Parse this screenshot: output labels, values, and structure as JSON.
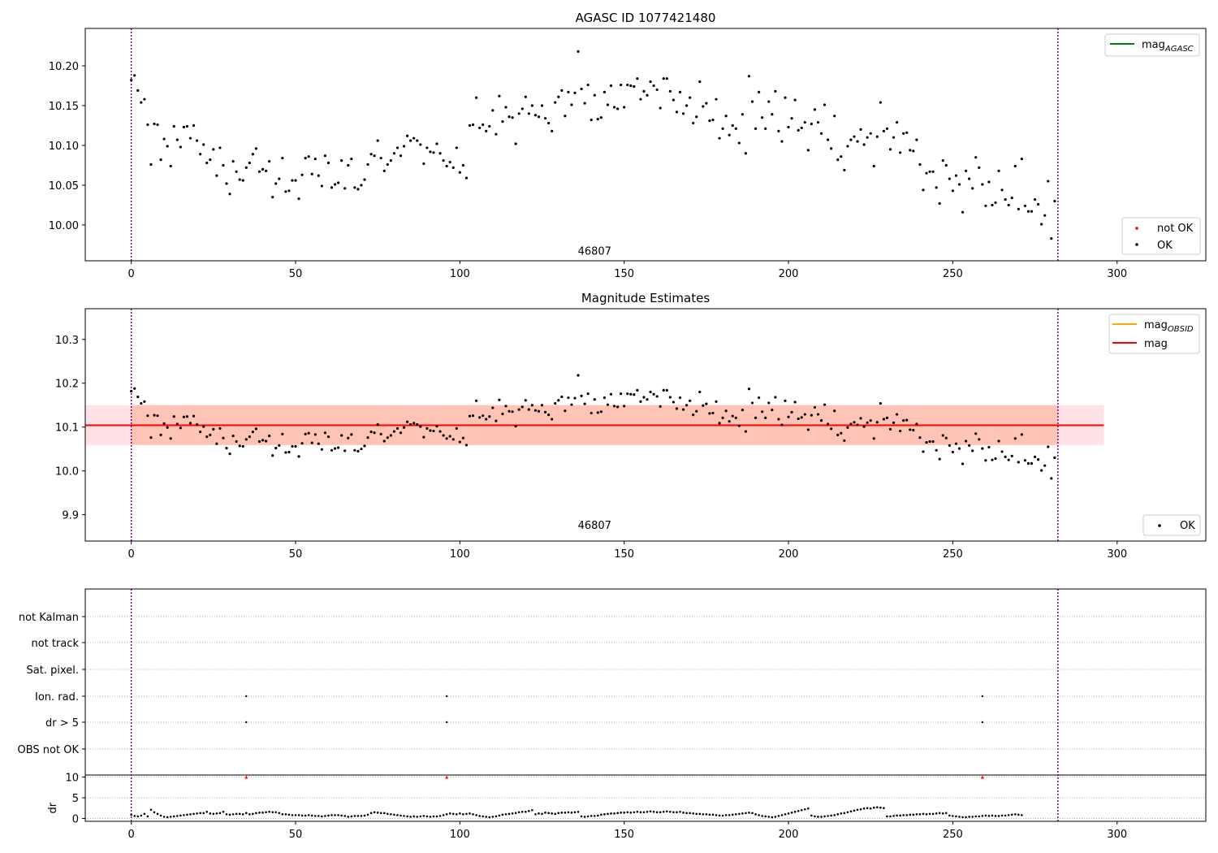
{
  "chart_data": [
    {
      "id": "p1",
      "type": "scatter",
      "title": "AGASC ID 1077421480",
      "xlim": [
        -14,
        327
      ],
      "ylim": [
        9.955,
        10.247
      ],
      "xticks": [
        0,
        50,
        100,
        150,
        200,
        250,
        300
      ],
      "yticks": [
        10.0,
        10.05,
        10.1,
        10.15,
        10.2
      ],
      "ytick_labels": [
        "10.00",
        "10.05",
        "10.10",
        "10.15",
        "10.20"
      ],
      "vlines": [
        0,
        282
      ],
      "obsid_label": {
        "x": 141,
        "y": 9.968,
        "text": "46807"
      },
      "legend_lines": [
        {
          "label": "mag",
          "sub": "AGASC",
          "color": "#008000"
        }
      ],
      "legend_points": [
        {
          "label": "not OK",
          "color": "#ff0000"
        },
        {
          "label": "OK",
          "color": "#000000"
        }
      ],
      "series": [
        {
          "name": "OK",
          "color": "#000000",
          "source": "mag"
        }
      ]
    },
    {
      "id": "p2",
      "type": "scatter",
      "title": "Magnitude Estimates",
      "xlim": [
        -14,
        327
      ],
      "ylim": [
        9.84,
        10.37
      ],
      "xticks": [
        0,
        50,
        100,
        150,
        200,
        250,
        300
      ],
      "yticks": [
        9.9,
        10.0,
        10.1,
        10.2,
        10.3
      ],
      "ytick_labels": [
        "9.9",
        "10.0",
        "10.1",
        "10.2",
        "10.3"
      ],
      "vlines": [
        0,
        282
      ],
      "obsid_label": {
        "x": 141,
        "y": 9.877,
        "text": "46807"
      },
      "mag_line": {
        "value": 10.104,
        "x": [
          -14,
          296
        ],
        "color": "#ff0000"
      },
      "band_outer": {
        "y": [
          10.059,
          10.15
        ],
        "x": [
          -14,
          296
        ],
        "color": "#ffb6c1"
      },
      "band_inner": {
        "y": [
          10.059,
          10.15
        ],
        "x": [
          0,
          282
        ],
        "color": "#ffa07a"
      },
      "legend_lines": [
        {
          "label": "mag",
          "sub": "OBSID",
          "color": "#ffa500"
        },
        {
          "label": "mag",
          "sub": "",
          "color": "#ff0000"
        }
      ],
      "legend_points": [
        {
          "label": "OK",
          "color": "#000000"
        }
      ],
      "series": [
        {
          "name": "OK",
          "color": "#000000",
          "source": "mag"
        }
      ]
    },
    {
      "id": "p3",
      "type": "scatter",
      "xlim": [
        -14,
        327
      ],
      "xticks": [
        0,
        50,
        100,
        150,
        200,
        250,
        300
      ],
      "vlines": [
        0,
        282
      ],
      "flag_labels": [
        "not Kalman",
        "not track",
        "Sat. pixel.",
        "Ion. rad.",
        "dr > 5",
        "OBS not OK"
      ],
      "flag_points": [
        {
          "flag": "Ion. rad.",
          "x": [
            35,
            96,
            259
          ]
        },
        {
          "flag": "dr > 5",
          "x": [
            35,
            96,
            259
          ]
        }
      ],
      "dr": {
        "ylabel": "dr",
        "ylim": [
          -0.7,
          10.5
        ],
        "yticks": [
          0,
          5,
          10
        ],
        "clipped": {
          "x": [
            35,
            96,
            259
          ],
          "y": 10,
          "color": "#ff0000"
        }
      }
    }
  ],
  "mag_values": [
    10.182,
    10.188,
    10.169,
    10.154,
    10.158,
    10.126,
    10.076,
    10.127,
    10.126,
    10.082,
    10.108,
    10.099,
    10.074,
    10.124,
    10.107,
    10.098,
    10.123,
    10.124,
    10.109,
    10.125,
    10.106,
    10.089,
    10.101,
    10.078,
    10.082,
    10.095,
    10.062,
    10.097,
    10.075,
    10.052,
    10.039,
    10.08,
    10.067,
    10.057,
    10.056,
    10.072,
    10.078,
    10.089,
    10.096,
    10.067,
    10.07,
    10.068,
    10.08,
    10.035,
    10.052,
    10.058,
    10.084,
    10.042,
    10.043,
    10.056,
    10.056,
    10.033,
    10.063,
    10.084,
    10.086,
    10.064,
    10.083,
    10.062,
    10.049,
    10.087,
    10.078,
    10.047,
    10.051,
    10.053,
    10.081,
    10.046,
    10.075,
    10.083,
    10.047,
    10.045,
    10.05,
    10.057,
    10.076,
    10.089,
    10.087,
    10.106,
    10.084,
    10.068,
    10.076,
    10.081,
    10.09,
    10.097,
    10.087,
    10.099,
    10.112,
    10.106,
    10.109,
    10.106,
    10.101,
    10.077,
    10.097,
    10.092,
    10.091,
    10.102,
    10.09,
    10.081,
    10.074,
    10.079,
    10.072,
    10.097,
    10.066,
    10.075,
    10.059,
    10.125,
    10.126,
    10.16,
    10.122,
    10.126,
    10.118,
    10.124,
    10.144,
    10.114,
    10.162,
    10.13,
    10.148,
    10.136,
    10.135,
    10.102,
    10.14,
    10.146,
    10.161,
    10.14,
    10.15,
    10.138,
    10.136,
    10.15,
    10.134,
    10.128,
    10.118,
    10.154,
    10.161,
    10.169,
    10.137,
    10.167,
    10.151,
    10.166,
    10.218,
    10.171,
    10.153,
    10.176,
    10.132,
    10.163,
    10.133,
    10.135,
    10.167,
    10.151,
    10.175,
    10.148,
    10.146,
    10.176,
    10.148,
    10.176,
    10.175,
    10.174,
    10.184,
    10.158,
    10.168,
    10.163,
    10.18,
    10.175,
    10.17,
    10.147,
    10.184,
    10.184,
    10.168,
    10.157,
    10.142,
    10.167,
    10.14,
    10.15,
    10.16,
    10.128,
    10.136,
    10.18,
    10.149,
    10.153,
    10.131,
    10.132,
    10.158,
    10.109,
    10.121,
    10.137,
    10.113,
    10.125,
    10.121,
    10.103,
    10.139,
    10.09,
    10.187,
    10.155,
    10.121,
    10.167,
    10.135,
    10.121,
    10.155,
    10.139,
    10.168,
    10.118,
    10.105,
    10.16,
    10.123,
    10.134,
    10.157,
    10.119,
    10.122,
    10.129,
    10.094,
    10.127,
    10.145,
    10.129,
    10.115,
    10.151,
    10.107,
    10.096,
    10.137,
    10.082,
    10.086,
    10.069,
    10.099,
    10.107,
    10.111,
    10.105,
    10.12,
    10.101,
    10.11,
    10.115,
    10.074,
    10.111,
    10.154,
    10.118,
    10.121,
    10.095,
    10.11,
    10.129,
    10.091,
    10.115,
    10.116,
    10.094,
    10.093,
    10.107,
    10.076,
    10.044,
    10.065,
    10.067,
    10.067,
    10.047,
    10.027,
    10.081,
    10.075,
    10.058,
    10.043,
    10.062,
    10.051,
    10.016,
    10.068,
    10.058,
    10.046,
    10.085,
    10.072,
    10.051,
    10.024,
    10.054,
    10.025,
    10.028,
    10.068,
    10.044,
    10.032,
    10.025,
    10.034,
    10.074,
    10.02,
    10.083,
    10.024,
    10.017,
    10.017,
    10.032,
    10.026,
    10.001,
    10.012,
    10.055,
    9.983,
    10.03
  ],
  "dr_values": [
    0.9,
    0.6,
    0.5,
    0.7,
    1.1,
    0.5,
    2.1,
    1.5,
    1.1,
    0.7,
    0.4,
    0.3,
    0.4,
    0.5,
    0.6,
    0.7,
    0.8,
    0.9,
    1.0,
    1.1,
    1.2,
    1.3,
    1.3,
    1.6,
    1.2,
    1.1,
    1.2,
    1.3,
    1.6,
    1.0,
    0.9,
    1.0,
    1.1,
    1.1,
    1.0,
    1.3,
    1.0,
    1.1,
    1.3,
    1.4,
    1.4,
    1.5,
    1.6,
    1.5,
    1.5,
    1.3,
    1.0,
    1.0,
    0.9,
    0.8,
    0.8,
    0.8,
    0.7,
    0.7,
    0.8,
    0.7,
    0.6,
    0.6,
    0.5,
    0.6,
    0.7,
    0.8,
    0.8,
    0.8,
    0.7,
    0.6,
    0.4,
    0.5,
    0.6,
    0.6,
    0.6,
    0.7,
    0.9,
    1.3,
    1.5,
    1.4,
    1.3,
    1.3,
    1.1,
    1.0,
    0.9,
    0.8,
    0.7,
    0.6,
    0.5,
    0.4,
    0.5,
    0.4,
    0.5,
    0.6,
    0.5,
    0.4,
    0.5,
    0.5,
    0.6,
    0.8,
    1.0,
    1.2,
    1.1,
    1.0,
    1.2,
    1.0,
    1.1,
    1.2,
    1.0,
    0.8,
    0.6,
    0.5,
    0.4,
    0.3,
    0.4,
    0.5,
    0.7,
    0.9,
    1.0,
    1.1,
    1.2,
    1.3,
    1.5,
    1.6,
    1.6,
    1.8,
    2.0,
    1.0,
    1.2,
    1.1,
    1.4,
    1.3,
    1.2,
    1.1,
    1.3,
    1.4,
    1.4,
    1.5,
    1.4,
    1.5,
    1.6,
    0.5,
    0.4,
    0.5,
    0.6,
    0.6,
    0.7,
    0.9,
    1.0,
    1.1,
    1.2,
    1.2,
    1.3,
    1.4,
    1.4,
    1.5,
    1.4,
    1.5,
    1.6,
    1.5,
    1.5,
    1.6,
    1.7,
    1.6,
    1.5,
    1.5,
    1.6,
    1.7,
    1.6,
    1.5,
    1.5,
    1.6,
    1.4,
    1.3,
    1.3,
    1.2,
    1.1,
    1.1,
    1.0,
    1.0,
    0.9,
    0.9,
    0.8,
    0.7,
    0.7,
    0.8,
    0.8,
    0.9,
    1.0,
    1.1,
    1.2,
    1.3,
    1.4,
    1.3,
    1.0,
    0.8,
    0.6,
    0.5,
    0.4,
    0.3,
    0.4,
    0.6,
    0.8,
    1.0,
    1.2,
    1.4,
    1.6,
    1.8,
    2.0,
    2.2,
    2.4,
    0.7,
    0.5,
    0.4,
    0.4,
    0.5,
    0.6,
    0.7,
    0.8,
    1.0,
    1.2,
    1.3,
    1.5,
    1.7,
    1.9,
    2.1,
    2.2,
    2.4,
    2.5,
    2.4,
    2.6,
    2.7,
    2.6,
    2.5,
    0.5,
    0.5,
    0.6,
    0.7,
    0.7,
    0.8,
    0.8,
    0.9,
    0.9,
    1.0,
    1.0,
    1.1,
    1.0,
    1.1,
    1.1,
    1.2,
    1.3,
    1.2,
    1.3,
    0.7,
    0.6,
    0.5,
    0.4,
    0.3,
    0.3,
    0.4,
    0.4,
    0.5,
    0.5,
    0.6,
    0.7,
    0.6,
    0.7,
    0.6,
    0.6,
    0.7,
    0.7,
    0.8,
    0.9,
    1.0,
    0.9,
    0.8
  ]
}
